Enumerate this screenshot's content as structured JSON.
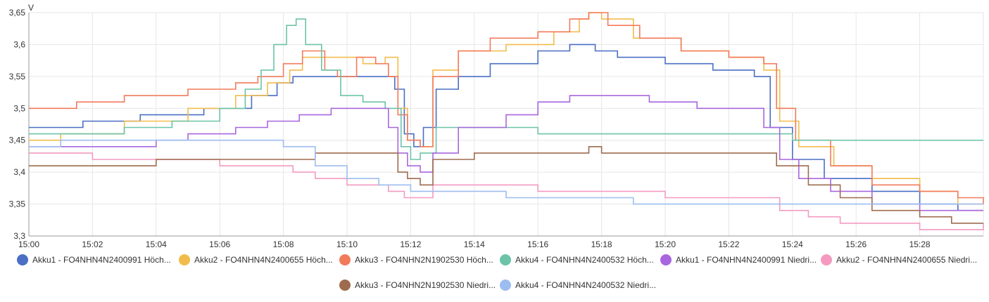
{
  "chart_data": {
    "type": "line",
    "title": "",
    "xlabel": "",
    "ylabel": "V",
    "ylim": [
      3.3,
      3.65
    ],
    "xlim": [
      "15:00",
      "15:30"
    ],
    "y_ticks": [
      "3,3",
      "3,35",
      "3,4",
      "3,45",
      "3,5",
      "3,55",
      "3,6",
      "3,65"
    ],
    "x_ticks": [
      "15:00",
      "15:02",
      "15:04",
      "15:06",
      "15:08",
      "15:10",
      "15:12",
      "15:14",
      "15:16",
      "15:18",
      "15:20",
      "15:22",
      "15:24",
      "15:26",
      "15:28"
    ],
    "grid": true,
    "legend_position": "bottom",
    "series": [
      {
        "name": "Akku1 - FO4NHN4N2400991 Höch...",
        "color": "#4a6fc4",
        "x": [
          0,
          1.7,
          3.5,
          5.5,
          7,
          7.8,
          8.3,
          9.5,
          11.1,
          11.5,
          11.8,
          12.1,
          12.4,
          12.8,
          13.5,
          14.5,
          16,
          17,
          17.8,
          18.5,
          20,
          21.5,
          22.8,
          23.3,
          24,
          25,
          26.5,
          28,
          29.2,
          30
        ],
        "y": [
          3.47,
          3.48,
          3.49,
          3.5,
          3.52,
          3.54,
          3.55,
          3.55,
          3.55,
          3.53,
          3.46,
          3.44,
          3.47,
          3.53,
          3.55,
          3.57,
          3.59,
          3.6,
          3.59,
          3.58,
          3.57,
          3.56,
          3.55,
          3.47,
          3.42,
          3.39,
          3.37,
          3.35,
          3.34,
          3.34
        ]
      },
      {
        "name": "Akku2 - FO4NHN4N2400655 Höch...",
        "color": "#f2bc4c",
        "x": [
          0,
          1,
          3,
          5,
          6.5,
          7.5,
          8.2,
          8.6,
          9.5,
          10.5,
          11.2,
          11.6,
          11.9,
          12.3,
          12.7,
          13.5,
          15,
          16.5,
          17.3,
          17.6,
          18,
          19,
          20.5,
          22,
          23.1,
          23.6,
          24.2,
          25.3,
          26.5,
          28,
          29.2,
          30
        ],
        "y": [
          3.45,
          3.46,
          3.48,
          3.5,
          3.52,
          3.54,
          3.56,
          3.58,
          3.58,
          3.57,
          3.58,
          3.5,
          3.45,
          3.44,
          3.56,
          3.59,
          3.6,
          3.62,
          3.64,
          3.65,
          3.64,
          3.61,
          3.59,
          3.58,
          3.56,
          3.48,
          3.44,
          3.41,
          3.39,
          3.37,
          3.35,
          3.35
        ]
      },
      {
        "name": "Akku3 - FO4NHN2N1902530 Höch...",
        "color": "#f27b5c",
        "x": [
          0,
          1.5,
          3,
          5,
          6.5,
          7.2,
          8,
          8.6,
          9.3,
          9.7,
          10.3,
          10.9,
          11.3,
          11.6,
          11.9,
          12.3,
          12.7,
          13.5,
          14.5,
          16,
          17,
          17.6,
          18.2,
          19.2,
          20.5,
          22,
          23.1,
          23.5,
          24.1,
          25.2,
          26.5,
          28,
          29.2,
          30
        ],
        "y": [
          3.5,
          3.51,
          3.52,
          3.53,
          3.54,
          3.55,
          3.57,
          3.59,
          3.56,
          3.55,
          3.58,
          3.57,
          3.55,
          3.49,
          3.45,
          3.44,
          3.55,
          3.59,
          3.61,
          3.62,
          3.64,
          3.65,
          3.63,
          3.61,
          3.59,
          3.58,
          3.57,
          3.5,
          3.45,
          3.41,
          3.38,
          3.37,
          3.36,
          3.35
        ]
      },
      {
        "name": "Akku4 - FO4NHN4N2400532 Höch...",
        "color": "#6cc3a8",
        "x": [
          0,
          1,
          3,
          4.5,
          6,
          6.8,
          7.3,
          7.7,
          8.1,
          8.4,
          8.7,
          9.2,
          9.8,
          10.5,
          11.2,
          11.7,
          12,
          12.3,
          12.8,
          13.5,
          15,
          16,
          20,
          23,
          24,
          25,
          29.9,
          30
        ],
        "y": [
          3.46,
          3.46,
          3.47,
          3.48,
          3.5,
          3.53,
          3.56,
          3.6,
          3.63,
          3.64,
          3.6,
          3.56,
          3.52,
          3.51,
          3.5,
          3.44,
          3.42,
          3.43,
          3.47,
          3.47,
          3.47,
          3.46,
          3.46,
          3.46,
          3.45,
          3.45,
          3.45,
          3.45
        ]
      },
      {
        "name": "Akku1 - FO4NHN4N2400991 Niedri...",
        "color": "#a867de",
        "x": [
          0,
          1,
          4,
          5,
          6.5,
          7.5,
          8.5,
          9.5,
          10.8,
          11.3,
          11.6,
          11.9,
          12.3,
          12.7,
          13.5,
          15,
          16,
          17,
          18,
          19.5,
          21,
          22.5,
          23.1,
          23.6,
          24.2,
          25.2,
          26.5,
          28,
          29.2,
          30
        ],
        "y": [
          3.44,
          3.44,
          3.45,
          3.46,
          3.47,
          3.48,
          3.49,
          3.5,
          3.5,
          3.47,
          3.43,
          3.41,
          3.4,
          3.43,
          3.47,
          3.49,
          3.51,
          3.52,
          3.52,
          3.51,
          3.5,
          3.5,
          3.47,
          3.42,
          3.39,
          3.37,
          3.35,
          3.34,
          3.34,
          3.34
        ]
      },
      {
        "name": "Akku2 - FO4NHN4N2400655 Niedri...",
        "color": "#f49ac1",
        "x": [
          0,
          2,
          4,
          6,
          7.5,
          8.3,
          9,
          10,
          11.3,
          11.8,
          12.2,
          12.7,
          13.5,
          16,
          20,
          23,
          23.6,
          24.5,
          25.5,
          26.5,
          28,
          28.5,
          30
        ],
        "y": [
          3.43,
          3.42,
          3.42,
          3.41,
          3.41,
          3.4,
          3.39,
          3.38,
          3.37,
          3.36,
          3.36,
          3.38,
          3.38,
          3.37,
          3.36,
          3.36,
          3.34,
          3.33,
          3.32,
          3.32,
          3.31,
          3.31,
          3.32
        ]
      },
      {
        "name": "Akku3 - FO4NHN2N1902530 Niedri...",
        "color": "#9e6b4e",
        "x": [
          0,
          2,
          4,
          6,
          7,
          8,
          9,
          10,
          11.2,
          11.6,
          11.9,
          12.3,
          12.7,
          14,
          16,
          17,
          17.6,
          18,
          20,
          22,
          23,
          23.5,
          24.5,
          25.5,
          26.5,
          28,
          29,
          30
        ],
        "y": [
          3.41,
          3.41,
          3.42,
          3.42,
          3.42,
          3.42,
          3.43,
          3.43,
          3.43,
          3.4,
          3.39,
          3.38,
          3.42,
          3.43,
          3.43,
          3.43,
          3.44,
          3.43,
          3.43,
          3.43,
          3.43,
          3.41,
          3.38,
          3.36,
          3.34,
          3.33,
          3.32,
          3.32
        ]
      },
      {
        "name": "Akku4 - FO4NHN4N2400532 Niedri...",
        "color": "#9dbdf0",
        "x": [
          0,
          1,
          2,
          4,
          6,
          7,
          8,
          9,
          10,
          11,
          12,
          13,
          15,
          17,
          19,
          21,
          23,
          25,
          27,
          28.5,
          30
        ],
        "y": [
          3.44,
          3.45,
          3.45,
          3.45,
          3.45,
          3.45,
          3.44,
          3.41,
          3.39,
          3.38,
          3.37,
          3.37,
          3.36,
          3.36,
          3.35,
          3.35,
          3.35,
          3.35,
          3.35,
          3.35,
          3.35
        ]
      }
    ]
  }
}
